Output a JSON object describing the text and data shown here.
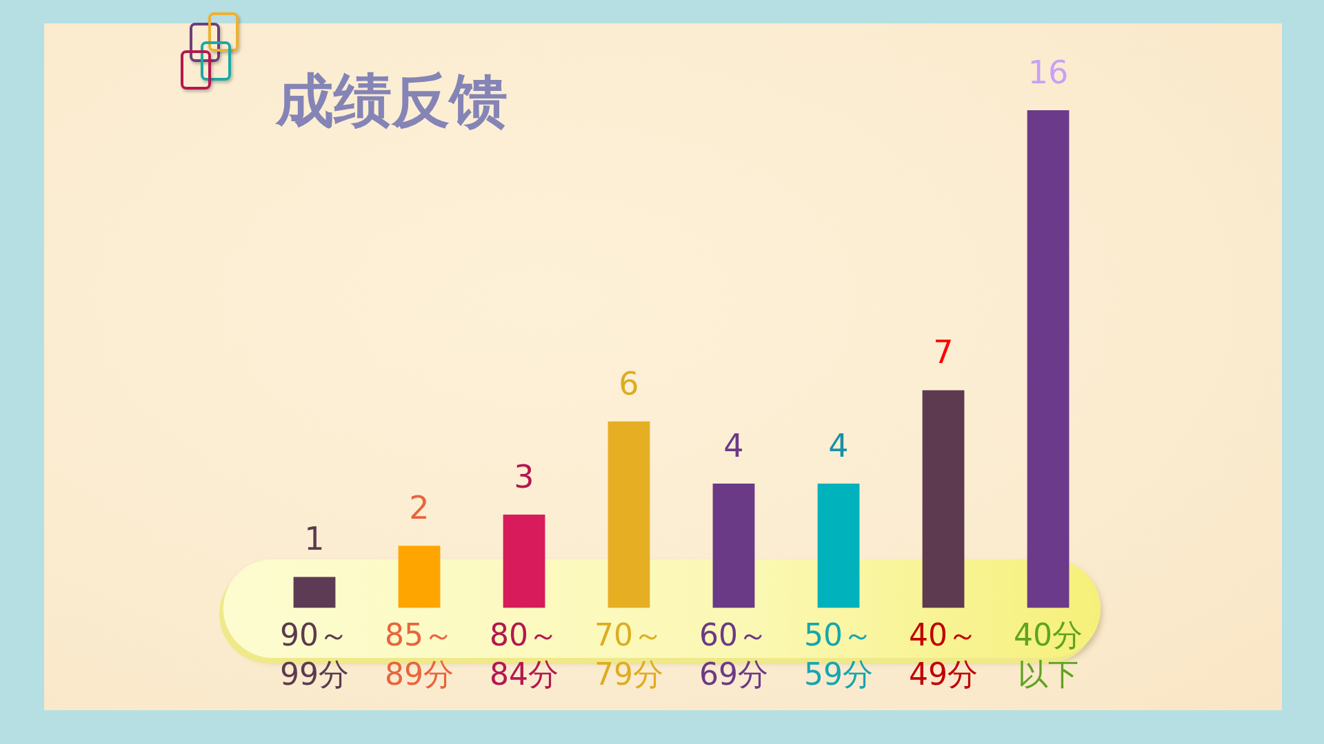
{
  "chart_data": {
    "type": "bar",
    "title": "成绩反馈",
    "categories": [
      "90～99分",
      "85～89分",
      "80～84分",
      "70～79分",
      "60～69分",
      "50～59分",
      "40～49分",
      "40分以下"
    ],
    "values": [
      1,
      2,
      3,
      6,
      4,
      4,
      7,
      16
    ],
    "colors": [
      "#5e3b55",
      "#ffa500",
      "#d81b5b",
      "#e6ae22",
      "#6a3a87",
      "#00b2bb",
      "#5d3a4f",
      "#6b3a8a"
    ],
    "data_labels": true,
    "grid": false,
    "legend": false
  }
}
